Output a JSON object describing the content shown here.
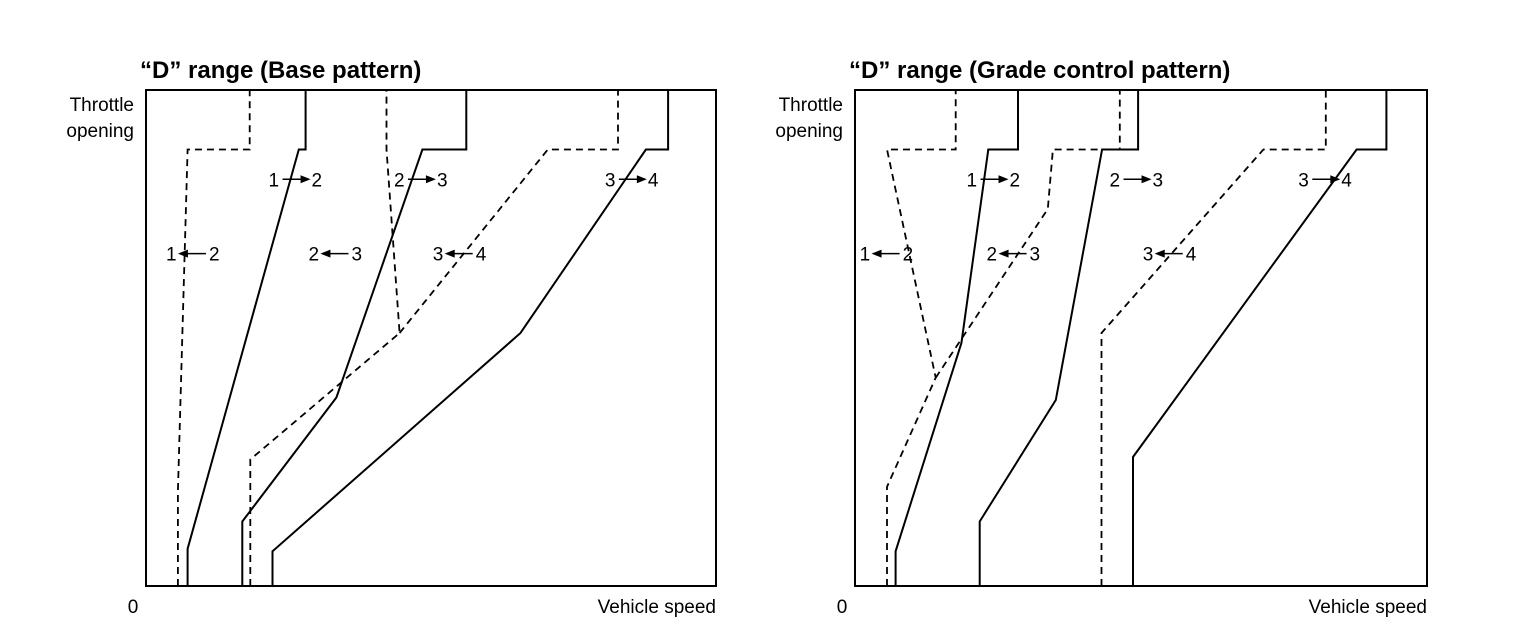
{
  "chart_data": [
    {
      "type": "line",
      "title": "“D” range (Base pattern)",
      "ylabel_lines": [
        "Throttle",
        "opening"
      ],
      "xlabel": "Vehicle speed",
      "origin_label": "0",
      "xlim": [
        0,
        100
      ],
      "ylim": [
        0,
        100
      ],
      "series": [
        {
          "style": "solid",
          "label": [
            "1",
            "2"
          ],
          "arrow": "right",
          "label_pos": [
            21.5,
            82
          ],
          "points": [
            [
              7.3,
              0
            ],
            [
              7.3,
              7.5
            ],
            [
              26.8,
              88
            ],
            [
              28,
              88
            ],
            [
              28,
              100
            ]
          ]
        },
        {
          "style": "dashed",
          "label": [
            "1",
            "2"
          ],
          "arrow": "left",
          "label_pos": [
            3.5,
            67
          ],
          "points": [
            [
              5.6,
              0
            ],
            [
              5.6,
              19
            ],
            [
              7.3,
              88
            ],
            [
              18.2,
              88
            ],
            [
              18.2,
              100
            ]
          ]
        },
        {
          "style": "solid",
          "label": [
            "2",
            "3"
          ],
          "arrow": "right",
          "label_pos": [
            43.5,
            82
          ],
          "points": [
            [
              16.9,
              0
            ],
            [
              16.9,
              13
            ],
            [
              33.4,
              38
            ],
            [
              48.5,
              88
            ],
            [
              56.2,
              88
            ],
            [
              56.2,
              100
            ]
          ]
        },
        {
          "style": "dashed",
          "label": [
            "2",
            "3"
          ],
          "arrow": "left",
          "label_pos": [
            28.5,
            67
          ],
          "points": [
            [
              18.3,
              0
            ],
            [
              18.3,
              25.5
            ],
            [
              44.5,
              51
            ],
            [
              42.2,
              88
            ],
            [
              42.2,
              100
            ]
          ]
        },
        {
          "style": "solid",
          "label": [
            "3",
            "4"
          ],
          "arrow": "right",
          "label_pos": [
            80.5,
            82
          ],
          "points": [
            [
              22.2,
              0
            ],
            [
              22.2,
              7
            ],
            [
              65.7,
              51
            ],
            [
              87.7,
              88
            ],
            [
              91.6,
              88
            ],
            [
              91.6,
              100
            ]
          ]
        },
        {
          "style": "dashed",
          "label": [
            "3",
            "4"
          ],
          "arrow": "left",
          "label_pos": [
            50.3,
            67
          ],
          "points": [
            [
              44.5,
              51
            ],
            [
              70.5,
              88
            ],
            [
              82.8,
              88
            ],
            [
              82.8,
              100
            ]
          ]
        }
      ]
    },
    {
      "type": "line",
      "title": "“D” range (Grade control pattern)",
      "ylabel_lines": [
        "Throttle",
        "opening"
      ],
      "xlabel": "Vehicle speed",
      "origin_label": "0",
      "xlim": [
        0,
        100
      ],
      "ylim": [
        0,
        100
      ],
      "series": [
        {
          "style": "solid",
          "label": [
            "1",
            "2"
          ],
          "arrow": "right",
          "label_pos": [
            19.5,
            82
          ],
          "points": [
            [
              7.1,
              0
            ],
            [
              7.1,
              7
            ],
            [
              18.6,
              49
            ],
            [
              23.3,
              88
            ],
            [
              28.5,
              88
            ],
            [
              28.5,
              100
            ]
          ]
        },
        {
          "style": "dashed",
          "label": [
            "1",
            "2"
          ],
          "arrow": "left",
          "label_pos": [
            0.8,
            67
          ],
          "points": [
            [
              5.6,
              0
            ],
            [
              5.6,
              20
            ],
            [
              14.1,
              42
            ],
            [
              5.6,
              88
            ],
            [
              17.6,
              88
            ],
            [
              17.6,
              100
            ]
          ]
        },
        {
          "style": "solid",
          "label": [
            "2",
            "3"
          ],
          "arrow": "right",
          "label_pos": [
            44.5,
            82
          ],
          "points": [
            [
              21.8,
              0
            ],
            [
              21.8,
              13
            ],
            [
              35.1,
              37.5
            ],
            [
              43.2,
              88
            ],
            [
              49.5,
              88
            ],
            [
              49.5,
              100
            ]
          ]
        },
        {
          "style": "dashed",
          "label": [
            "2",
            "3"
          ],
          "arrow": "left",
          "label_pos": [
            23,
            67
          ],
          "points": [
            [
              14.1,
              42
            ],
            [
              33.7,
              76
            ],
            [
              34.6,
              88
            ],
            [
              46.3,
              88
            ],
            [
              46.3,
              100
            ]
          ]
        },
        {
          "style": "solid",
          "label": [
            "3",
            "4"
          ],
          "arrow": "right",
          "label_pos": [
            77.5,
            82
          ],
          "points": [
            [
              48.6,
              0
            ],
            [
              48.6,
              26
            ],
            [
              87.7,
              88
            ],
            [
              92.9,
              88
            ],
            [
              92.9,
              100
            ]
          ]
        },
        {
          "style": "dashed",
          "label": [
            "3",
            "4"
          ],
          "arrow": "left",
          "label_pos": [
            50.3,
            67
          ],
          "points": [
            [
              43.1,
              0
            ],
            [
              43.1,
              51
            ],
            [
              71.4,
              88
            ],
            [
              82.3,
              88
            ],
            [
              82.3,
              100
            ]
          ]
        }
      ]
    }
  ]
}
